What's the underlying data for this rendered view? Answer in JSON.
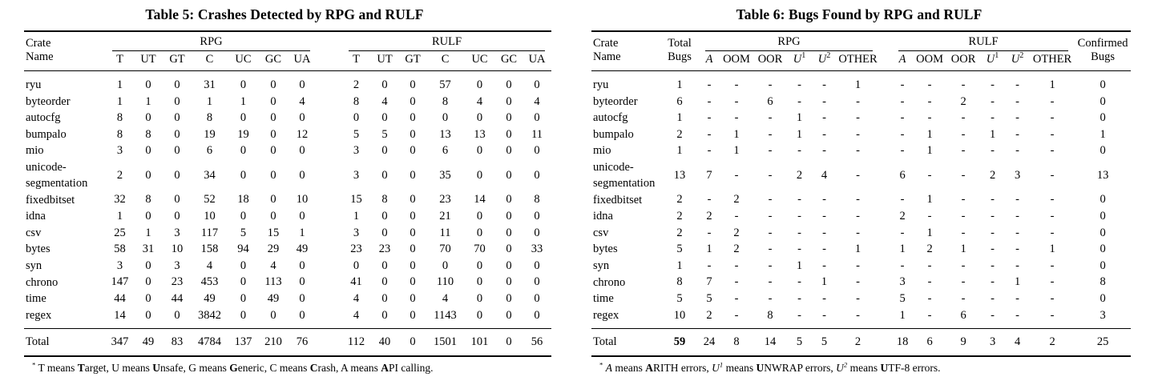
{
  "table5": {
    "title": "Table 5: Crashes Detected by RPG and RULF",
    "header": {
      "crate_line1": "Crate",
      "crate_line2": "Name",
      "group_rpg": "RPG",
      "group_rulf": "RULF",
      "subcols": [
        "T",
        "UT",
        "GT",
        "C",
        "UC",
        "GC",
        "UA"
      ]
    },
    "rows": [
      {
        "name": "ryu",
        "cells": [
          "1",
          "0",
          "0",
          "31",
          "0",
          "0",
          "0",
          "2",
          "0",
          "0",
          "57",
          "0",
          "0",
          "0"
        ]
      },
      {
        "name": "byteorder",
        "cells": [
          "1",
          "1",
          "0",
          "1",
          "1",
          "0",
          "4",
          "8",
          "4",
          "0",
          "8",
          "4",
          "0",
          "4"
        ]
      },
      {
        "name": "autocfg",
        "cells": [
          "8",
          "0",
          "0",
          "8",
          "0",
          "0",
          "0",
          "0",
          "0",
          "0",
          "0",
          "0",
          "0",
          "0"
        ]
      },
      {
        "name": "bumpalo",
        "cells": [
          "8",
          "8",
          "0",
          "19",
          "19",
          "0",
          "12",
          "5",
          "5",
          "0",
          "13",
          "13",
          "0",
          "11"
        ]
      },
      {
        "name": "mio",
        "cells": [
          "3",
          "0",
          "0",
          "6",
          "0",
          "0",
          "0",
          "3",
          "0",
          "0",
          "6",
          "0",
          "0",
          "0"
        ]
      },
      {
        "name": "unicode-segmentation",
        "cells": [
          "2",
          "0",
          "0",
          "34",
          "0",
          "0",
          "0",
          "3",
          "0",
          "0",
          "35",
          "0",
          "0",
          "0"
        ]
      },
      {
        "name": "fixedbitset",
        "cells": [
          "32",
          "8",
          "0",
          "52",
          "18",
          "0",
          "10",
          "15",
          "8",
          "0",
          "23",
          "14",
          "0",
          "8"
        ]
      },
      {
        "name": "idna",
        "cells": [
          "1",
          "0",
          "0",
          "10",
          "0",
          "0",
          "0",
          "1",
          "0",
          "0",
          "21",
          "0",
          "0",
          "0"
        ]
      },
      {
        "name": "csv",
        "cells": [
          "25",
          "1",
          "3",
          "117",
          "5",
          "15",
          "1",
          "3",
          "0",
          "0",
          "11",
          "0",
          "0",
          "0"
        ]
      },
      {
        "name": "bytes",
        "cells": [
          "58",
          "31",
          "10",
          "158",
          "94",
          "29",
          "49",
          "23",
          "23",
          "0",
          "70",
          "70",
          "0",
          "33"
        ]
      },
      {
        "name": "syn",
        "cells": [
          "3",
          "0",
          "3",
          "4",
          "0",
          "4",
          "0",
          "0",
          "0",
          "0",
          "0",
          "0",
          "0",
          "0"
        ]
      },
      {
        "name": "chrono",
        "cells": [
          "147",
          "0",
          "23",
          "453",
          "0",
          "113",
          "0",
          "41",
          "0",
          "0",
          "110",
          "0",
          "0",
          "0"
        ]
      },
      {
        "name": "time",
        "cells": [
          "44",
          "0",
          "44",
          "49",
          "0",
          "49",
          "0",
          "4",
          "0",
          "0",
          "4",
          "0",
          "0",
          "0"
        ]
      },
      {
        "name": "regex",
        "cells": [
          "14",
          "0",
          "0",
          "3842",
          "0",
          "0",
          "0",
          "4",
          "0",
          "0",
          "1143",
          "0",
          "0",
          "0"
        ]
      },
      {
        "name": "Total",
        "total": true,
        "cells": [
          "347",
          "49",
          "83",
          "4784",
          "137",
          "210",
          "76",
          "112",
          "40",
          "0",
          "1501",
          "101",
          "0",
          "56"
        ]
      }
    ],
    "footnote": [
      {
        "t": "*",
        "sup": 1
      },
      {
        "t": " T means "
      },
      {
        "t": "T",
        "b": 1
      },
      {
        "t": "arget, U means "
      },
      {
        "t": "U",
        "b": 1
      },
      {
        "t": "nsafe, G means "
      },
      {
        "t": "G",
        "b": 1
      },
      {
        "t": "eneric, C means "
      },
      {
        "t": "C",
        "b": 1
      },
      {
        "t": "rash, A means "
      },
      {
        "t": "A",
        "b": 1
      },
      {
        "t": "PI calling."
      }
    ]
  },
  "table6": {
    "title": "Table 6: Bugs Found by RPG and RULF",
    "header": {
      "crate_line1": "Crate",
      "crate_line2": "Name",
      "total_line1": "Total",
      "total_line2": "Bugs",
      "group_rpg": "RPG",
      "group_rulf": "RULF",
      "confirmed_line1": "Confirmed",
      "confirmed_line2": "Bugs",
      "subcols": [
        {
          "base": "A"
        },
        {
          "base": "OOM"
        },
        {
          "base": "OOR"
        },
        {
          "base": "U",
          "sup": "1"
        },
        {
          "base": "U",
          "sup": "2"
        },
        {
          "base": "OTHER"
        }
      ]
    },
    "rows": [
      {
        "name": "ryu",
        "cells": [
          "1",
          "-",
          "-",
          "-",
          "-",
          "-",
          "1",
          "-",
          "-",
          "-",
          "-",
          "-",
          "1",
          "0"
        ]
      },
      {
        "name": "byteorder",
        "cells": [
          "6",
          "-",
          "-",
          "6",
          "-",
          "-",
          "-",
          "-",
          "-",
          "2",
          "-",
          "-",
          "-",
          "0"
        ]
      },
      {
        "name": "autocfg",
        "cells": [
          "1",
          "-",
          "-",
          "-",
          "1",
          "-",
          "-",
          "-",
          "-",
          "-",
          "-",
          "-",
          "-",
          "0"
        ]
      },
      {
        "name": "bumpalo",
        "cells": [
          "2",
          "-",
          "1",
          "-",
          "1",
          "-",
          "-",
          "-",
          "1",
          "-",
          "1",
          "-",
          "-",
          "1"
        ]
      },
      {
        "name": "mio",
        "cells": [
          "1",
          "-",
          "1",
          "-",
          "-",
          "-",
          "-",
          "-",
          "1",
          "-",
          "-",
          "-",
          "-",
          "0"
        ]
      },
      {
        "name": "unicode-segmentation",
        "cells": [
          "13",
          "7",
          "-",
          "-",
          "2",
          "4",
          "-",
          "6",
          "-",
          "-",
          "2",
          "3",
          "-",
          "13"
        ]
      },
      {
        "name": "fixedbitset",
        "cells": [
          "2",
          "-",
          "2",
          "-",
          "-",
          "-",
          "-",
          "-",
          "1",
          "-",
          "-",
          "-",
          "-",
          "0"
        ]
      },
      {
        "name": "idna",
        "cells": [
          "2",
          "2",
          "-",
          "-",
          "-",
          "-",
          "-",
          "2",
          "-",
          "-",
          "-",
          "-",
          "-",
          "0"
        ]
      },
      {
        "name": "csv",
        "cells": [
          "2",
          "-",
          "2",
          "-",
          "-",
          "-",
          "-",
          "-",
          "1",
          "-",
          "-",
          "-",
          "-",
          "0"
        ]
      },
      {
        "name": "bytes",
        "cells": [
          "5",
          "1",
          "2",
          "-",
          "-",
          "-",
          "1",
          "1",
          "2",
          "1",
          "-",
          "-",
          "1",
          "0"
        ]
      },
      {
        "name": "syn",
        "cells": [
          "1",
          "-",
          "-",
          "-",
          "1",
          "-",
          "-",
          "-",
          "-",
          "-",
          "-",
          "-",
          "-",
          "0"
        ]
      },
      {
        "name": "chrono",
        "cells": [
          "8",
          "7",
          "-",
          "-",
          "-",
          "1",
          "-",
          "3",
          "-",
          "-",
          "-",
          "1",
          "-",
          "8"
        ]
      },
      {
        "name": "time",
        "cells": [
          "5",
          "5",
          "-",
          "-",
          "-",
          "-",
          "-",
          "5",
          "-",
          "-",
          "-",
          "-",
          "-",
          "0"
        ]
      },
      {
        "name": "regex",
        "cells": [
          "10",
          "2",
          "-",
          "8",
          "-",
          "-",
          "-",
          "1",
          "-",
          "6",
          "-",
          "-",
          "-",
          "3"
        ]
      },
      {
        "name": "Total",
        "total": true,
        "cells": [
          "59",
          "24",
          "8",
          "14",
          "5",
          "5",
          "2",
          "18",
          "6",
          "9",
          "3",
          "4",
          "2",
          "25"
        ]
      }
    ],
    "footnote": [
      {
        "t": "*",
        "sup": 1
      },
      {
        "t": " "
      },
      {
        "t": "A",
        "i": 1
      },
      {
        "t": " means "
      },
      {
        "t": "A",
        "b": 1
      },
      {
        "t": "RITH errors, "
      },
      {
        "t": "U",
        "i": 1
      },
      {
        "t": "1",
        "i": 1,
        "sup": 1
      },
      {
        "t": " means "
      },
      {
        "t": "U",
        "b": 1
      },
      {
        "t": "NWRAP errors, "
      },
      {
        "t": "U",
        "i": 1
      },
      {
        "t": "2",
        "i": 1,
        "sup": 1
      },
      {
        "t": " means "
      },
      {
        "t": "U",
        "b": 1
      },
      {
        "t": "TF-8 errors."
      }
    ]
  }
}
